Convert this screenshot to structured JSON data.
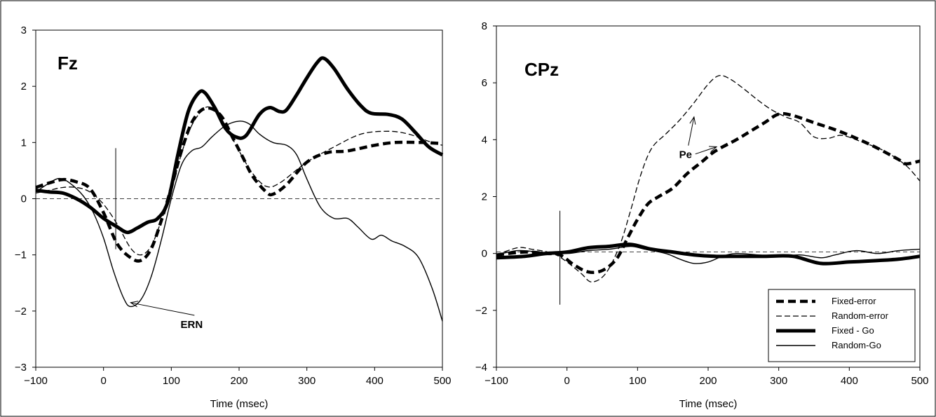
{
  "chart_data": [
    {
      "type": "line",
      "panel_label": "Fz",
      "xlabel": "Time (msec)",
      "ylabel": "",
      "xlim": [
        -100,
        500
      ],
      "ylim": [
        -3,
        3
      ],
      "xticks": [
        -100,
        0,
        100,
        200,
        300,
        400,
        500
      ],
      "yticks": [
        -3,
        -2,
        -1,
        0,
        1,
        2,
        3
      ],
      "xtick_labels": [
        "−100",
        "0",
        "100",
        "200",
        "300",
        "400",
        "500"
      ],
      "ytick_labels": [
        "−3",
        "−2",
        "−1",
        "0",
        "1",
        "2",
        "3"
      ],
      "baseline": 0,
      "stimulus_marker": {
        "x": 18,
        "y_from": -0.9,
        "y_to": 0.9
      },
      "annotations": [
        {
          "text": "ERN",
          "x": 130,
          "y": -2.3,
          "arrow_to": [
            40,
            -1.85
          ]
        }
      ],
      "series": [
        {
          "name": "Fixed-error",
          "style": "thick-dashed",
          "points": [
            [
              -100,
              0.2
            ],
            [
              -80,
              0.28
            ],
            [
              -60,
              0.34
            ],
            [
              -40,
              0.3
            ],
            [
              -20,
              0.18
            ],
            [
              0,
              -0.25
            ],
            [
              20,
              -0.8
            ],
            [
              40,
              -1.05
            ],
            [
              55,
              -1.1
            ],
            [
              70,
              -0.9
            ],
            [
              85,
              -0.4
            ],
            [
              100,
              0.2
            ],
            [
              115,
              0.85
            ],
            [
              130,
              1.35
            ],
            [
              145,
              1.58
            ],
            [
              160,
              1.6
            ],
            [
              175,
              1.45
            ],
            [
              190,
              1.1
            ],
            [
              205,
              0.75
            ],
            [
              220,
              0.4
            ],
            [
              240,
              0.12
            ],
            [
              250,
              0.08
            ],
            [
              270,
              0.25
            ],
            [
              300,
              0.65
            ],
            [
              330,
              0.82
            ],
            [
              360,
              0.85
            ],
            [
              400,
              0.95
            ],
            [
              430,
              1.0
            ],
            [
              470,
              1.0
            ],
            [
              500,
              0.98
            ]
          ]
        },
        {
          "name": "Random-error",
          "style": "thin-dashed",
          "points": [
            [
              -100,
              0.1
            ],
            [
              -80,
              0.15
            ],
            [
              -60,
              0.2
            ],
            [
              -40,
              0.2
            ],
            [
              -20,
              0.12
            ],
            [
              0,
              -0.1
            ],
            [
              20,
              -0.45
            ],
            [
              40,
              -0.88
            ],
            [
              55,
              -1.0
            ],
            [
              70,
              -0.85
            ],
            [
              85,
              -0.4
            ],
            [
              100,
              0.15
            ],
            [
              115,
              0.8
            ],
            [
              130,
              1.3
            ],
            [
              150,
              1.62
            ],
            [
              165,
              1.55
            ],
            [
              180,
              1.3
            ],
            [
              200,
              0.85
            ],
            [
              220,
              0.45
            ],
            [
              240,
              0.22
            ],
            [
              260,
              0.28
            ],
            [
              300,
              0.65
            ],
            [
              340,
              0.92
            ],
            [
              380,
              1.15
            ],
            [
              420,
              1.2
            ],
            [
              450,
              1.15
            ],
            [
              480,
              1.02
            ],
            [
              500,
              0.95
            ]
          ]
        },
        {
          "name": "Fixed - Go",
          "style": "thick-solid",
          "points": [
            [
              -100,
              0.15
            ],
            [
              -80,
              0.12
            ],
            [
              -60,
              0.1
            ],
            [
              -40,
              0.0
            ],
            [
              -20,
              -0.15
            ],
            [
              0,
              -0.35
            ],
            [
              20,
              -0.5
            ],
            [
              35,
              -0.6
            ],
            [
              50,
              -0.52
            ],
            [
              65,
              -0.42
            ],
            [
              80,
              -0.35
            ],
            [
              95,
              -0.05
            ],
            [
              110,
              0.8
            ],
            [
              125,
              1.55
            ],
            [
              140,
              1.88
            ],
            [
              150,
              1.88
            ],
            [
              165,
              1.6
            ],
            [
              180,
              1.25
            ],
            [
              195,
              1.1
            ],
            [
              210,
              1.12
            ],
            [
              230,
              1.5
            ],
            [
              245,
              1.62
            ],
            [
              260,
              1.55
            ],
            [
              270,
              1.58
            ],
            [
              285,
              1.85
            ],
            [
              300,
              2.15
            ],
            [
              315,
              2.42
            ],
            [
              325,
              2.5
            ],
            [
              340,
              2.32
            ],
            [
              360,
              1.95
            ],
            [
              380,
              1.65
            ],
            [
              395,
              1.52
            ],
            [
              420,
              1.5
            ],
            [
              440,
              1.42
            ],
            [
              460,
              1.18
            ],
            [
              480,
              0.92
            ],
            [
              500,
              0.78
            ]
          ]
        },
        {
          "name": "Random-Go",
          "style": "thin-solid",
          "points": [
            [
              -100,
              0.12
            ],
            [
              -80,
              0.28
            ],
            [
              -65,
              0.36
            ],
            [
              -50,
              0.28
            ],
            [
              -30,
              0.05
            ],
            [
              -15,
              -0.25
            ],
            [
              0,
              -0.7
            ],
            [
              15,
              -1.3
            ],
            [
              30,
              -1.78
            ],
            [
              40,
              -1.92
            ],
            [
              55,
              -1.8
            ],
            [
              70,
              -1.4
            ],
            [
              85,
              -0.75
            ],
            [
              100,
              0.0
            ],
            [
              115,
              0.6
            ],
            [
              130,
              0.85
            ],
            [
              145,
              0.92
            ],
            [
              160,
              1.1
            ],
            [
              180,
              1.3
            ],
            [
              200,
              1.38
            ],
            [
              215,
              1.33
            ],
            [
              230,
              1.15
            ],
            [
              250,
              1.0
            ],
            [
              270,
              0.95
            ],
            [
              285,
              0.78
            ],
            [
              300,
              0.35
            ],
            [
              320,
              -0.15
            ],
            [
              340,
              -0.35
            ],
            [
              360,
              -0.35
            ],
            [
              375,
              -0.5
            ],
            [
              395,
              -0.72
            ],
            [
              410,
              -0.65
            ],
            [
              425,
              -0.75
            ],
            [
              445,
              -0.85
            ],
            [
              465,
              -1.05
            ],
            [
              485,
              -1.6
            ],
            [
              500,
              -2.18
            ]
          ]
        }
      ]
    },
    {
      "type": "line",
      "panel_label": "CPz",
      "xlabel": "Time (msec)",
      "ylabel": "",
      "xlim": [
        -100,
        500
      ],
      "ylim": [
        -4,
        8
      ],
      "xticks": [
        -100,
        0,
        100,
        200,
        300,
        400,
        500
      ],
      "yticks": [
        -4,
        -2,
        0,
        2,
        4,
        6,
        8
      ],
      "xtick_labels": [
        "−100",
        "0",
        "100",
        "200",
        "300",
        "400",
        "500"
      ],
      "ytick_labels": [
        "−4",
        "−2",
        "0",
        "2",
        "4",
        "6",
        "8"
      ],
      "baseline": 0.05,
      "stimulus_marker": {
        "x": -10,
        "y_from": -1.8,
        "y_to": 1.5
      },
      "annotations": [
        {
          "text": "Pe",
          "x": 168,
          "y": 3.35,
          "arrow_to": [
            [
              180,
              4.8
            ],
            [
              212,
              3.75
            ]
          ]
        }
      ],
      "legend": {
        "position": "bottom-right",
        "entries": [
          "Fixed-error",
          "Random-error",
          "Fixed - Go",
          "Random-Go"
        ]
      },
      "series": [
        {
          "name": "Fixed-error",
          "style": "thick-dashed",
          "points": [
            [
              -100,
              -0.05
            ],
            [
              -60,
              0.05
            ],
            [
              -30,
              0.0
            ],
            [
              -10,
              -0.05
            ],
            [
              10,
              -0.4
            ],
            [
              30,
              -0.65
            ],
            [
              50,
              -0.6
            ],
            [
              70,
              -0.2
            ],
            [
              85,
              0.5
            ],
            [
              100,
              1.2
            ],
            [
              115,
              1.75
            ],
            [
              130,
              2.0
            ],
            [
              150,
              2.3
            ],
            [
              170,
              2.8
            ],
            [
              190,
              3.2
            ],
            [
              210,
              3.6
            ],
            [
              240,
              4.0
            ],
            [
              260,
              4.3
            ],
            [
              280,
              4.6
            ],
            [
              300,
              4.9
            ],
            [
              320,
              4.85
            ],
            [
              350,
              4.6
            ],
            [
              380,
              4.35
            ],
            [
              410,
              4.05
            ],
            [
              440,
              3.7
            ],
            [
              470,
              3.3
            ],
            [
              480,
              3.15
            ],
            [
              500,
              3.25
            ]
          ]
        },
        {
          "name": "Random-error",
          "style": "thin-dashed",
          "points": [
            [
              -100,
              -0.05
            ],
            [
              -70,
              0.2
            ],
            [
              -50,
              0.15
            ],
            [
              -20,
              0.0
            ],
            [
              0,
              -0.3
            ],
            [
              20,
              -0.7
            ],
            [
              35,
              -1.0
            ],
            [
              55,
              -0.7
            ],
            [
              75,
              0.3
            ],
            [
              90,
              1.5
            ],
            [
              105,
              2.8
            ],
            [
              120,
              3.7
            ],
            [
              140,
              4.2
            ],
            [
              160,
              4.7
            ],
            [
              180,
              5.3
            ],
            [
              200,
              5.95
            ],
            [
              215,
              6.25
            ],
            [
              230,
              6.15
            ],
            [
              250,
              5.8
            ],
            [
              270,
              5.4
            ],
            [
              290,
              5.05
            ],
            [
              310,
              4.8
            ],
            [
              330,
              4.6
            ],
            [
              350,
              4.1
            ],
            [
              370,
              4.05
            ],
            [
              390,
              4.15
            ],
            [
              420,
              3.9
            ],
            [
              450,
              3.6
            ],
            [
              480,
              3.1
            ],
            [
              500,
              2.55
            ]
          ]
        },
        {
          "name": "Fixed - Go",
          "style": "thick-solid",
          "points": [
            [
              -100,
              -0.15
            ],
            [
              -60,
              -0.1
            ],
            [
              -30,
              0.0
            ],
            [
              0,
              0.05
            ],
            [
              30,
              0.2
            ],
            [
              60,
              0.25
            ],
            [
              90,
              0.32
            ],
            [
              120,
              0.15
            ],
            [
              150,
              0.05
            ],
            [
              180,
              -0.05
            ],
            [
              210,
              -0.1
            ],
            [
              240,
              -0.1
            ],
            [
              280,
              -0.1
            ],
            [
              320,
              -0.1
            ],
            [
              360,
              -0.35
            ],
            [
              400,
              -0.3
            ],
            [
              440,
              -0.25
            ],
            [
              470,
              -0.2
            ],
            [
              500,
              -0.1
            ]
          ]
        },
        {
          "name": "Random-Go",
          "style": "thin-solid",
          "points": [
            [
              -100,
              -0.05
            ],
            [
              -70,
              0.1
            ],
            [
              -40,
              0.05
            ],
            [
              0,
              0.0
            ],
            [
              30,
              0.1
            ],
            [
              60,
              0.15
            ],
            [
              90,
              0.25
            ],
            [
              110,
              0.15
            ],
            [
              140,
              0.0
            ],
            [
              160,
              -0.2
            ],
            [
              180,
              -0.35
            ],
            [
              200,
              -0.3
            ],
            [
              220,
              -0.1
            ],
            [
              240,
              0.0
            ],
            [
              270,
              -0.05
            ],
            [
              300,
              -0.1
            ],
            [
              330,
              -0.05
            ],
            [
              360,
              -0.15
            ],
            [
              380,
              -0.05
            ],
            [
              410,
              0.1
            ],
            [
              440,
              0.0
            ],
            [
              470,
              0.1
            ],
            [
              500,
              0.15
            ]
          ]
        }
      ]
    }
  ]
}
